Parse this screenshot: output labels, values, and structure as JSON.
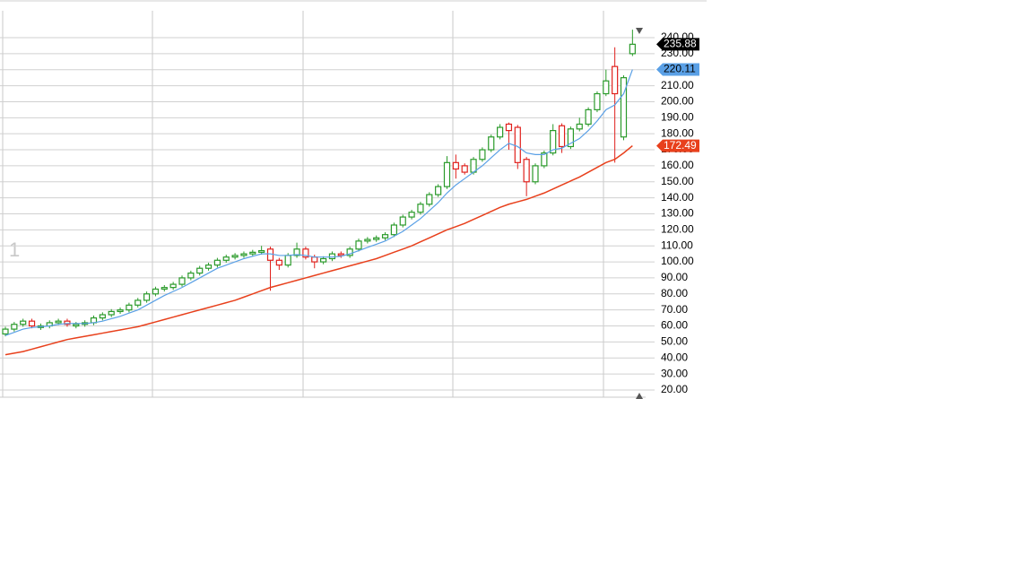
{
  "chart_data": {
    "type": "candlestick",
    "pane_label": "1",
    "ylim": [
      15.5,
      256.8
    ],
    "yticks": [
      {
        "value": 20,
        "label": "20.00"
      },
      {
        "value": 30,
        "label": "30.00"
      },
      {
        "value": 40,
        "label": "40.00"
      },
      {
        "value": 50,
        "label": "50.00"
      },
      {
        "value": 60,
        "label": "60.00"
      },
      {
        "value": 70,
        "label": "70.00"
      },
      {
        "value": 80,
        "label": "80.00"
      },
      {
        "value": 90,
        "label": "90.00"
      },
      {
        "value": 100,
        "label": "100.00"
      },
      {
        "value": 110,
        "label": "110.00"
      },
      {
        "value": 120,
        "label": "120.00"
      },
      {
        "value": 130,
        "label": "130.00"
      },
      {
        "value": 140,
        "label": "140.00"
      },
      {
        "value": 150,
        "label": "150.00"
      },
      {
        "value": 160,
        "label": "160.00"
      },
      {
        "value": 170,
        "label": "170.00"
      },
      {
        "value": 180,
        "label": "180.00"
      },
      {
        "value": 190,
        "label": "190.00"
      },
      {
        "value": 200,
        "label": "200.00"
      },
      {
        "value": 210,
        "label": "210.00"
      },
      {
        "value": 220,
        "label": "220.00"
      },
      {
        "value": 230,
        "label": "230.00"
      },
      {
        "value": 240,
        "label": "240.00"
      }
    ],
    "grid": true,
    "up_color": "#2a9a2a",
    "down_color": "#e0201c",
    "last_tag_color": "#000000",
    "open": [
      55,
      58,
      61,
      63,
      59,
      60,
      62,
      63,
      60,
      61,
      62,
      65,
      67,
      69,
      70,
      73,
      76,
      80,
      83,
      84,
      86,
      90,
      93,
      96,
      98,
      101,
      103,
      104,
      105,
      106,
      108,
      101,
      98,
      104,
      108,
      103,
      100,
      102,
      105,
      104,
      108,
      113,
      114,
      115,
      117,
      123,
      128,
      131,
      136,
      142,
      147,
      162,
      160,
      156,
      164,
      170,
      178,
      186,
      184,
      164,
      150,
      160,
      168,
      185,
      172,
      183,
      186,
      195,
      205,
      222,
      178,
      230
    ],
    "high": [
      59.5,
      62.5,
      64.5,
      64.5,
      61.5,
      63.5,
      64.5,
      64.5,
      62.5,
      63.5,
      66.5,
      68.5,
      70.5,
      71.5,
      74.5,
      77.5,
      81.5,
      84.5,
      85.5,
      87.5,
      91.5,
      94.5,
      97.5,
      99.5,
      102.5,
      104.5,
      105.5,
      106.5,
      107.5,
      110,
      109.5,
      102.5,
      105.5,
      112,
      109.5,
      104.5,
      103.5,
      106.5,
      106.5,
      109.5,
      114.5,
      115.5,
      116.5,
      118.5,
      124.5,
      129.5,
      132.5,
      137.5,
      143.5,
      148.5,
      166,
      167,
      161.5,
      165.5,
      171.5,
      179.5,
      186,
      187,
      185.5,
      165.5,
      161.5,
      169.5,
      186,
      186.5,
      184.5,
      190,
      196.5,
      206.5,
      220,
      234,
      216.5,
      245
    ],
    "low": [
      53.5,
      56.5,
      59.5,
      58.5,
      57.5,
      58.5,
      60.5,
      59.5,
      58.5,
      59.5,
      60.5,
      63.5,
      65.5,
      67.5,
      68.5,
      71.5,
      74.5,
      78.5,
      81.5,
      82.5,
      84.5,
      88.5,
      91.5,
      94.5,
      96.5,
      99.5,
      101.5,
      102.5,
      103.5,
      104.5,
      82,
      95,
      96.5,
      102.5,
      101.5,
      96,
      98.5,
      100.5,
      102.5,
      102.5,
      106.5,
      111.5,
      112.5,
      113.5,
      115.5,
      121.5,
      126.5,
      129.5,
      134.5,
      140.5,
      145.5,
      152,
      154.5,
      154.5,
      162.5,
      168.5,
      176.5,
      170,
      158,
      141,
      148.5,
      158.5,
      166.5,
      168,
      170.5,
      181.5,
      184.5,
      193.5,
      203.5,
      162,
      176,
      228.5
    ],
    "close": [
      58,
      61,
      63,
      60,
      60,
      62,
      63,
      61,
      61,
      62,
      65,
      67,
      69,
      70,
      73,
      76,
      80,
      83,
      84,
      86,
      90,
      93,
      96,
      98,
      101,
      103,
      104,
      105,
      106,
      107,
      101,
      98,
      104,
      108,
      103,
      100,
      102,
      105,
      104,
      108,
      113,
      114,
      115,
      117,
      123,
      128,
      131,
      136,
      142,
      147,
      162,
      158,
      156,
      164,
      170,
      178,
      184,
      182,
      162,
      150,
      160,
      168,
      182,
      172,
      183,
      186,
      195,
      205,
      213,
      205,
      215,
      235.88
    ],
    "series": [
      {
        "color": "#5aa0e6",
        "values": [
          54,
          56,
          58,
          59,
          59.5,
          60,
          61,
          61.5,
          61.5,
          61.5,
          62,
          63,
          64.5,
          66,
          68,
          70,
          73,
          76,
          79,
          81.5,
          84,
          87,
          90,
          93,
          96,
          98,
          100,
          102,
          103.5,
          105,
          105,
          104,
          104,
          104.5,
          104,
          103,
          103,
          103,
          103.5,
          105,
          107,
          109,
          111,
          113,
          116,
          119,
          123,
          127,
          132,
          137,
          143,
          148,
          152,
          156,
          160,
          165,
          170,
          174,
          172,
          168,
          167,
          167,
          170,
          171,
          174,
          177,
          182,
          188,
          195,
          198,
          205,
          220.11
        ]
      },
      {
        "color": "#e8401c",
        "values": [
          42,
          43,
          44,
          45.5,
          47,
          48.5,
          50,
          51.5,
          52.5,
          53.5,
          54.5,
          55.5,
          56.5,
          57.5,
          58.5,
          59.5,
          61,
          62.5,
          64,
          65.5,
          67,
          68.5,
          70,
          71.5,
          73,
          74.5,
          76,
          78,
          80,
          82,
          84,
          85.5,
          87,
          88.5,
          90,
          91.5,
          93,
          94.5,
          96,
          97.5,
          99,
          100.5,
          102,
          104,
          106,
          108,
          110,
          112.5,
          115,
          117.5,
          120,
          122,
          124,
          126.5,
          129,
          131.5,
          134,
          136,
          137.5,
          139,
          141,
          143,
          145.5,
          148,
          150.5,
          153,
          156,
          159,
          162,
          164,
          168,
          172.49
        ]
      }
    ]
  }
}
